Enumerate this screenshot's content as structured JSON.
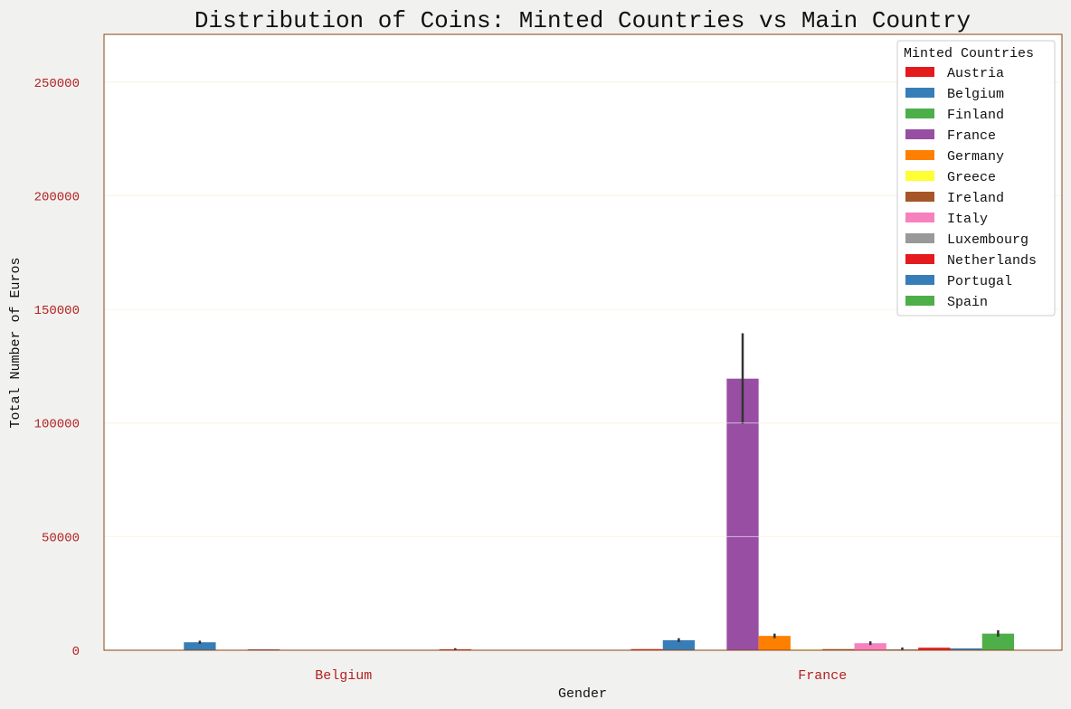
{
  "chart_data": {
    "type": "bar",
    "title": "Distribution of Coins: Minted Countries vs Main Country",
    "xlabel": "Gender",
    "ylabel": "Total Number of Euros",
    "ylim": [
      0,
      271000
    ],
    "yticks": [
      0,
      50000,
      100000,
      150000,
      200000,
      250000
    ],
    "grid": true,
    "legend_title": "Minted Countries",
    "legend_position": "top-right",
    "categories": [
      "Belgium",
      "France"
    ],
    "series": [
      {
        "name": "Austria",
        "color": "#e41a1c",
        "values": [
          0,
          500
        ],
        "err_low": [
          null,
          null
        ],
        "err_high": [
          null,
          null
        ]
      },
      {
        "name": "Belgium",
        "color": "#377eb8",
        "values": [
          3500,
          4400
        ],
        "err_low": [
          2800,
          3600
        ],
        "err_high": [
          4200,
          5300
        ]
      },
      {
        "name": "Finland",
        "color": "#4daf4a",
        "values": [
          0,
          0
        ],
        "err_low": [
          null,
          null
        ],
        "err_high": [
          null,
          null
        ]
      },
      {
        "name": "France",
        "color": "#984ea3",
        "values": [
          400,
          119500
        ],
        "err_low": [
          null,
          99500
        ],
        "err_high": [
          null,
          139500
        ]
      },
      {
        "name": "Germany",
        "color": "#ff7f00",
        "values": [
          100,
          6300
        ],
        "err_low": [
          null,
          5300
        ],
        "err_high": [
          null,
          7300
        ]
      },
      {
        "name": "Greece",
        "color": "#ffff33",
        "values": [
          0,
          300
        ],
        "err_low": [
          null,
          null
        ],
        "err_high": [
          null,
          null
        ]
      },
      {
        "name": "Ireland",
        "color": "#a65628",
        "values": [
          0,
          500
        ],
        "err_low": [
          null,
          null
        ],
        "err_high": [
          null,
          null
        ]
      },
      {
        "name": "Italy",
        "color": "#f781bf",
        "values": [
          0,
          3100
        ],
        "err_low": [
          null,
          2300
        ],
        "err_high": [
          null,
          3900
        ]
      },
      {
        "name": "Luxembourg",
        "color": "#999999",
        "values": [
          0,
          400
        ],
        "err_low": [
          null,
          0
        ],
        "err_high": [
          null,
          1200
        ]
      },
      {
        "name": "Netherlands",
        "color": "#e41a1c",
        "values": [
          400,
          1100
        ],
        "err_low": [
          0,
          null
        ],
        "err_high": [
          900,
          null
        ]
      },
      {
        "name": "Portugal",
        "color": "#377eb8",
        "values": [
          0,
          800
        ],
        "err_low": [
          null,
          null
        ],
        "err_high": [
          null,
          null
        ]
      },
      {
        "name": "Spain",
        "color": "#4daf4a",
        "values": [
          0,
          7300
        ],
        "err_low": [
          null,
          6000
        ],
        "err_high": [
          null,
          8800
        ]
      }
    ]
  },
  "colors": {
    "background": "#f1f1ef",
    "plot_background": "#ffffff",
    "spine": "#8b4513",
    "grid": "#f5e6c8",
    "tick_label": "#b22222",
    "error_bar": "#333333"
  }
}
